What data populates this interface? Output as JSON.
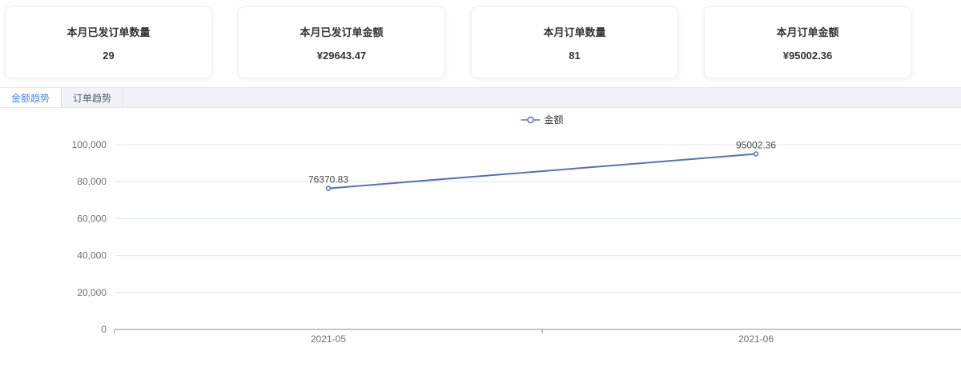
{
  "stats_cards": [
    {
      "title": "本月已发订单数量",
      "value": "29"
    },
    {
      "title": "本月已发订单金额",
      "value": "¥29643.47"
    },
    {
      "title": "本月订单数量",
      "value": "81"
    },
    {
      "title": "本月订单金额",
      "value": "¥95002.36"
    }
  ],
  "tabs": [
    {
      "label": "金额趋势",
      "active": true
    },
    {
      "label": "订单趋势",
      "active": false
    }
  ],
  "colors": {
    "accent_blue": "#4a86e8",
    "series_blue": "#5470c6",
    "gridline": "#e0e6f1",
    "axis_line": "#8b8e94",
    "axis_label": "#6e7079",
    "data_label": "#464646"
  },
  "chart_data": {
    "type": "line",
    "categories": [
      "2021-05",
      "2021-06"
    ],
    "series": [
      {
        "name": "金额",
        "values": [
          76370.83,
          95002.36
        ]
      }
    ],
    "data_labels": [
      "76370.83",
      "95002.36"
    ],
    "ylim": [
      0,
      100000
    ],
    "y_ticks": [
      0,
      20000,
      40000,
      60000,
      80000,
      100000
    ],
    "y_tick_labels": [
      "0",
      "20,000",
      "40,000",
      "60,000",
      "80,000",
      "100,000"
    ],
    "legend": {
      "label": "金额",
      "position": "top-center"
    },
    "grid": true,
    "xlabel": "",
    "ylabel": ""
  }
}
